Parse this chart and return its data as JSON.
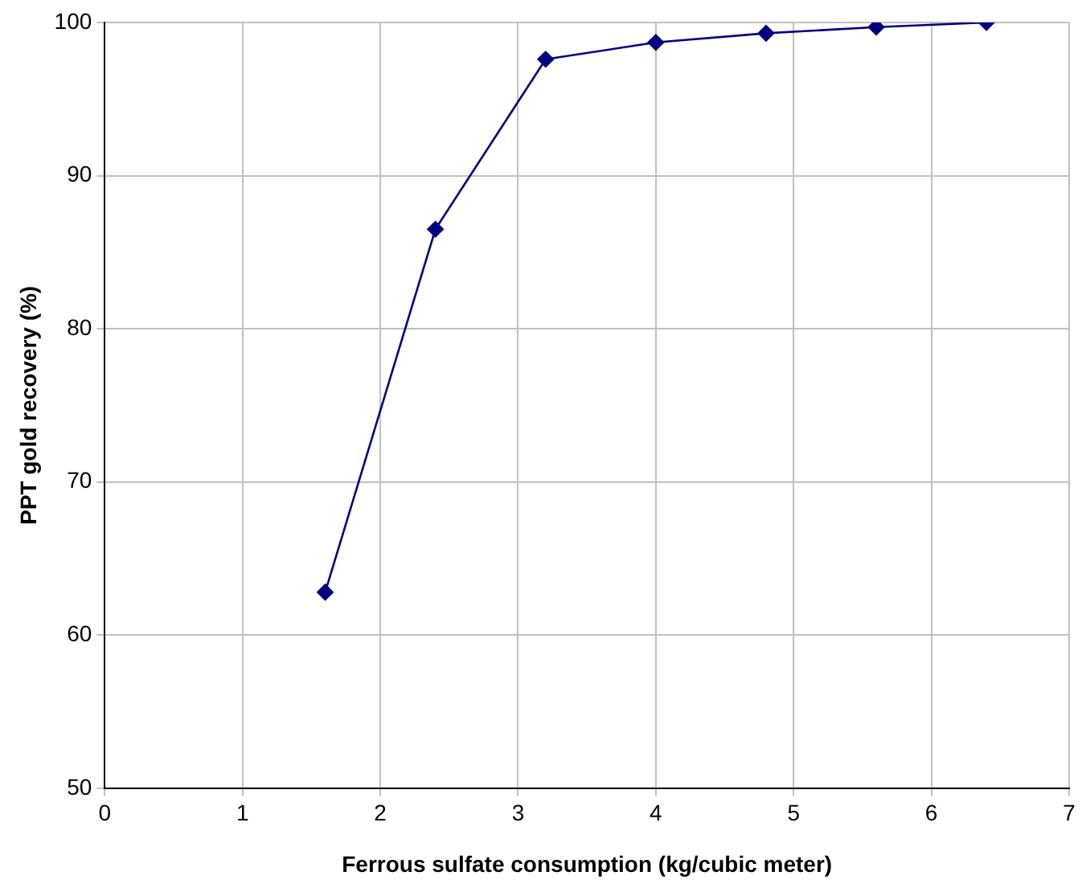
{
  "chart_data": {
    "type": "line",
    "xlabel": "Ferrous sulfate consumption (kg/cubic meter)",
    "ylabel": "PPT gold recovery (%)",
    "x": [
      1.6,
      2.4,
      3.2,
      4,
      4.8,
      5.6,
      6.4
    ],
    "series": [
      {
        "color": "#000080",
        "values": [
          62.8,
          86.5,
          97.6,
          98.7,
          99.3,
          99.7,
          100
        ]
      }
    ],
    "xlim": [
      0,
      7
    ],
    "xticks": [
      0,
      1,
      2,
      3,
      4,
      5,
      6,
      7
    ],
    "ylim": [
      50,
      100
    ],
    "yticks": [
      50,
      60,
      70,
      80,
      90,
      100
    ],
    "grid": true,
    "legend": false,
    "marker": "diamond",
    "line_style": "solid"
  }
}
